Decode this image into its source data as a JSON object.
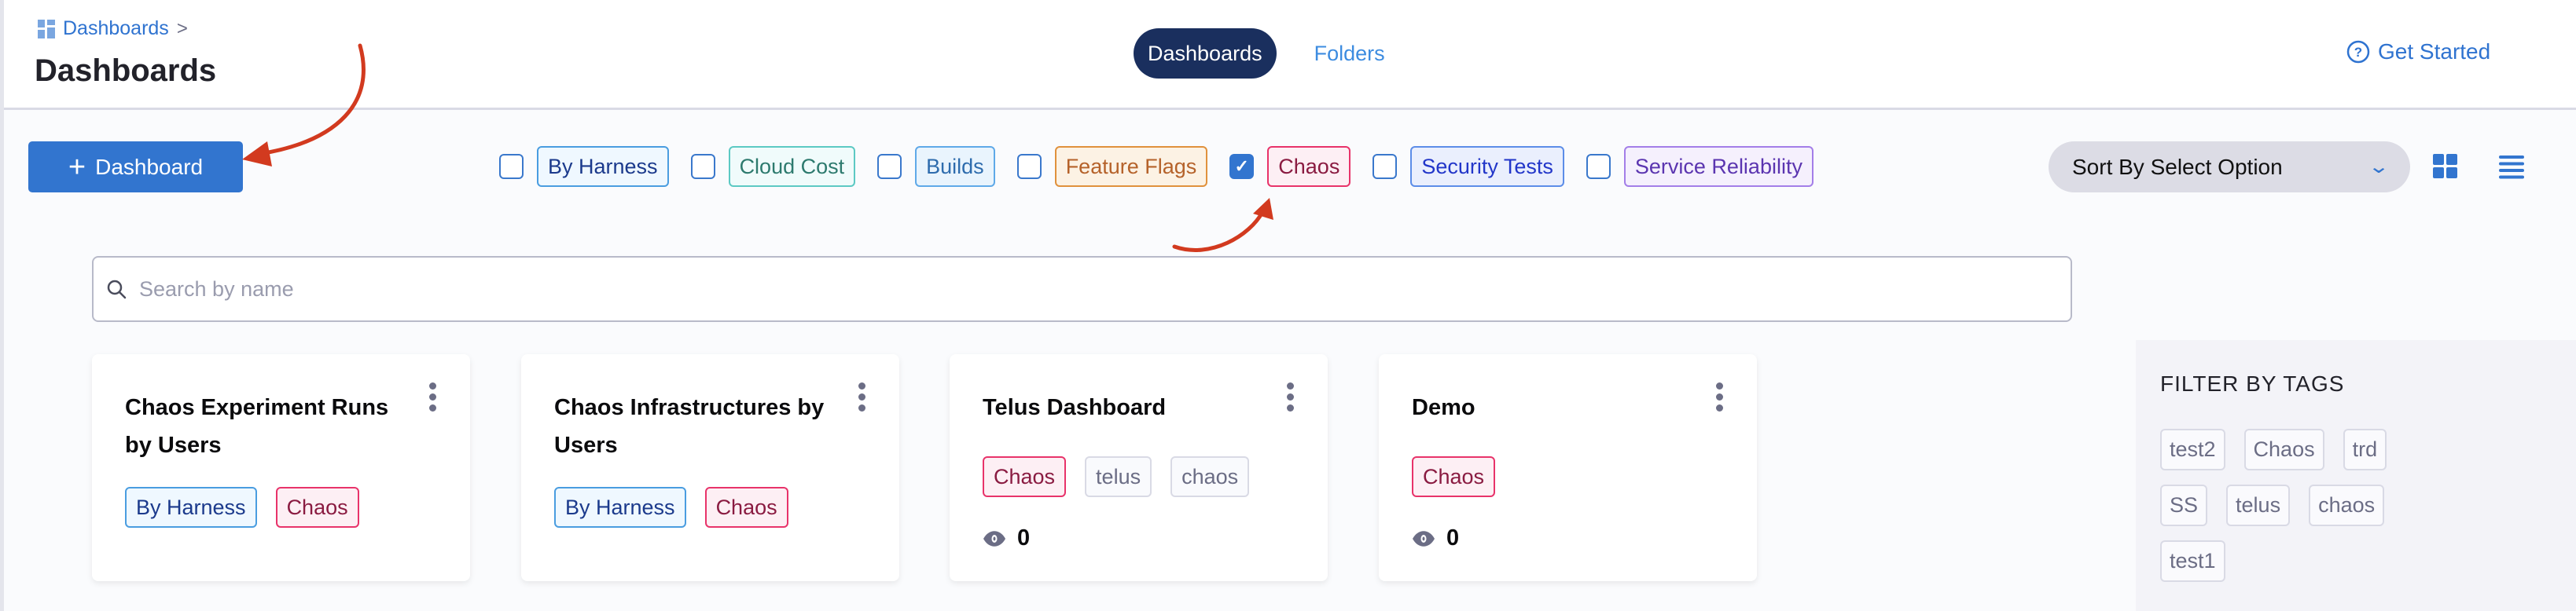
{
  "breadcrumb": {
    "icon": "dashboard-grid-icon",
    "label": "Dashboards",
    "separator": ">"
  },
  "page_title": "Dashboards",
  "tabs": [
    {
      "label": "Dashboards",
      "active": true
    },
    {
      "label": "Folders",
      "active": false
    }
  ],
  "get_started": {
    "icon": "help-circle-icon",
    "label": "Get Started"
  },
  "add_button": {
    "icon": "plus-icon",
    "label": "Dashboard"
  },
  "filters": [
    {
      "label": "By Harness",
      "checked": false,
      "border": "#4a9de0",
      "bg": "#eff8ff",
      "color": "#1b3a8c"
    },
    {
      "label": "Cloud Cost",
      "checked": false,
      "border": "#5cc9c3",
      "bg": "#f0fbfb",
      "color": "#2d7a6e"
    },
    {
      "label": "Builds",
      "checked": false,
      "border": "#5fa9e8",
      "bg": "#e9f4fd",
      "color": "#2e6cad"
    },
    {
      "label": "Feature Flags",
      "checked": false,
      "border": "#e0913c",
      "bg": "#fcf2e4",
      "color": "#b5622a"
    },
    {
      "label": "Chaos",
      "checked": true,
      "border": "#e8336a",
      "bg": "#fdeff4",
      "color": "#8a1b41"
    },
    {
      "label": "Security Tests",
      "checked": false,
      "border": "#5c8de8",
      "bg": "#eaeffd",
      "color": "#2236c9"
    },
    {
      "label": "Service Reliability",
      "checked": false,
      "border": "#a37ee8",
      "bg": "#f5f0fd",
      "color": "#5b35b0"
    }
  ],
  "sort": {
    "label": "Sort By Select Option"
  },
  "view_toggles": {
    "grid": "grid-view-icon",
    "list": "list-view-icon"
  },
  "search": {
    "placeholder": "Search by name",
    "value": ""
  },
  "cards": [
    {
      "title": "Chaos Experiment Runs by Users",
      "tags": [
        "By Harness",
        "Chaos"
      ],
      "views": null
    },
    {
      "title": "Chaos Infrastructures by Users",
      "tags": [
        "By Harness",
        "Chaos"
      ],
      "views": null
    },
    {
      "title": "Telus Dashboard",
      "tags": [
        "Chaos",
        "telus",
        "chaos"
      ],
      "views": "0"
    },
    {
      "title": "Demo",
      "tags": [
        "Chaos"
      ],
      "views": "0"
    }
  ],
  "filter_panel": {
    "title": "FILTER BY TAGS",
    "tags": [
      "test2",
      "Chaos",
      "trd",
      "SS",
      "telus",
      "chaos",
      "test1"
    ]
  },
  "annotation_color": "#d23a1f"
}
